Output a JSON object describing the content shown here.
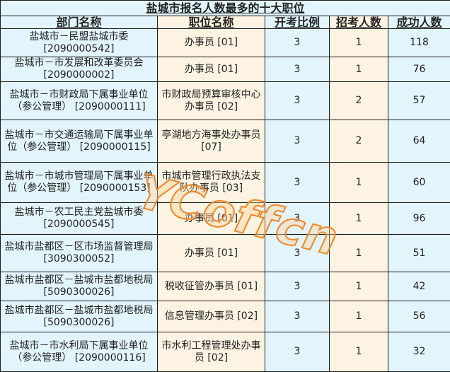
{
  "title": "盐城市报名人数最多的十大职位",
  "columns": [
    "部门名称",
    "职位名称",
    "开考比例",
    "招考人数",
    "成功人数"
  ],
  "rows": [
    {
      "dept": "盐城市－民盟盐城市委 [2090000542]",
      "position": "办事员 [01]",
      "ratio": "3",
      "quota": "1",
      "success": "118"
    },
    {
      "dept": "盐城市－市发展和改革委员会 [2090000002]",
      "position": "办事员 [01]",
      "ratio": "3",
      "quota": "1",
      "success": "76"
    },
    {
      "dept": "盐城市－市财政局下属事业单位（参公管理） [2090000111]",
      "position": "市财政局预算审核中心办事员 [02]",
      "ratio": "3",
      "quota": "2",
      "success": "57"
    },
    {
      "dept": "盐城市－市交通运输局下属事业单位（参公管理） [2090000115]",
      "position": "亭湖地方海事处办事员 [07]",
      "ratio": "3",
      "quota": "2",
      "success": "64"
    },
    {
      "dept": "盐城市－市城市管理局下属事业单位（参公管理） [2090000153]",
      "position": "市城市管理行政执法支队办事员 [03]",
      "ratio": "3",
      "quota": "1",
      "success": "60"
    },
    {
      "dept": "盐城市－农工民主党盐城市委 [2090000545]",
      "position": "办事员 [01]",
      "ratio": "3",
      "quota": "1",
      "success": "96"
    },
    {
      "dept": "盐城市盐都区－区市场监督管理局 [3090300052]",
      "position": "办事员 [01]",
      "ratio": "3",
      "quota": "1",
      "success": "51"
    },
    {
      "dept": "盐城市盐都区－盐城市盐都地税局 [5090300026]",
      "position": "税收征管办事员 [01]",
      "ratio": "3",
      "quota": "1",
      "success": "42"
    },
    {
      "dept": "盐城市盐都区－盐城市盐都地税局 [5090300026]",
      "position": "信息管理办事员 [02]",
      "ratio": "3",
      "quota": "1",
      "success": "56"
    },
    {
      "dept": "盐城市－市水利局下属事业单位（参公管理） [2090000116]",
      "position": "市水利工程管理处办事员 [02]",
      "ratio": "3",
      "quota": "1",
      "success": "32"
    }
  ],
  "watermark": "YCoffcn",
  "colors": {
    "blue_cell": "#e3f5fc",
    "beige_cell": "#fdf3e2",
    "watermark": "#f0862a"
  }
}
